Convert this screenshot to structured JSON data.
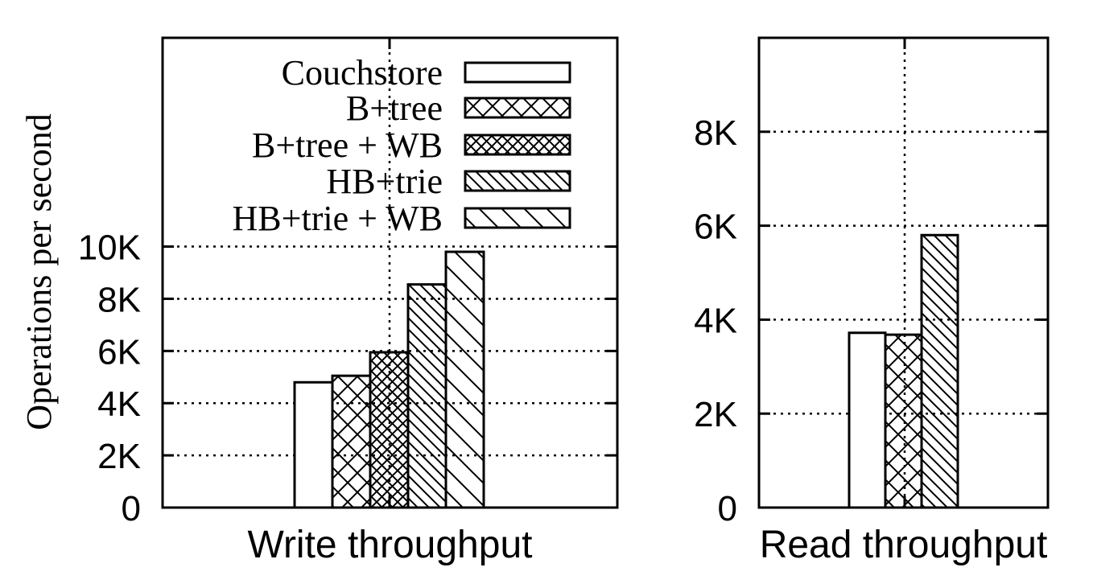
{
  "chart_data": [
    {
      "type": "bar",
      "categories": [
        "Write throughput"
      ],
      "xlabel": "Write throughput",
      "ylabel": "Operations per second",
      "ylim": [
        0,
        18000
      ],
      "yticks": [
        0,
        2000,
        4000,
        6000,
        8000,
        10000
      ],
      "ytick_labels": [
        "0",
        "2K",
        "4K",
        "6K",
        "8K",
        "10K"
      ],
      "grid": true,
      "legend": "top-right",
      "series": [
        {
          "name": "Couchstore",
          "pattern": "none",
          "values": [
            4800
          ]
        },
        {
          "name": "B+tree",
          "pattern": "cross",
          "values": [
            5050
          ]
        },
        {
          "name": "B+tree + WB",
          "pattern": "cross-dense",
          "values": [
            5950
          ]
        },
        {
          "name": "HB+trie",
          "pattern": "diag-dense",
          "values": [
            8550
          ]
        },
        {
          "name": "HB+trie + WB",
          "pattern": "diag-sparse",
          "values": [
            9800
          ]
        }
      ]
    },
    {
      "type": "bar",
      "categories": [
        "Read throughput"
      ],
      "xlabel": "Read throughput",
      "ylim": [
        0,
        10000
      ],
      "yticks": [
        0,
        2000,
        4000,
        6000,
        8000
      ],
      "ytick_labels": [
        "0",
        "2K",
        "4K",
        "6K",
        "8K"
      ],
      "grid": true,
      "series": [
        {
          "name": "Couchstore",
          "pattern": "none",
          "values": [
            3720
          ]
        },
        {
          "name": "B+tree",
          "pattern": "cross",
          "values": [
            3680
          ]
        },
        {
          "name": "HB+trie",
          "pattern": "diag-dense",
          "values": [
            5800
          ]
        }
      ]
    }
  ]
}
